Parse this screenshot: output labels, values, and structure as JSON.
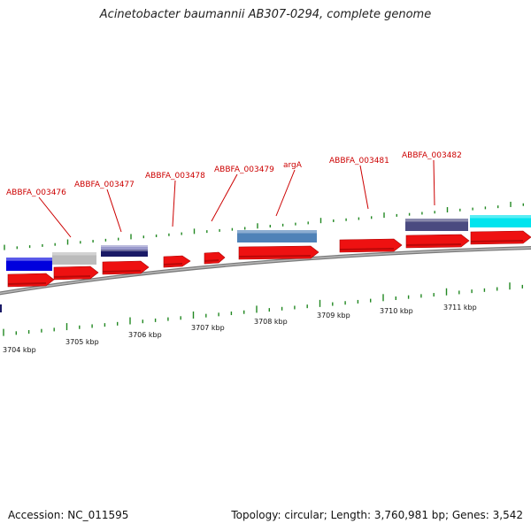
{
  "header": {
    "title": "Acinetobacter baumannii AB307-0294, complete genome"
  },
  "footer": {
    "accession": "Accession: NC_011595",
    "stats": "Topology: circular; Length: 3,760,981 bp; Genes: 3,542"
  },
  "colors": {
    "cds_red": "#ee1111",
    "backbone": "#8c8c8c",
    "tick_green": "#228822",
    "label_red": "#cc0000",
    "blue": "#0000dd",
    "grey": "#bbbbbb",
    "navy": "#1a1a66",
    "lavender": "#9a9acc",
    "steelblue": "#4f82b8",
    "slate": "#4a4a80",
    "cyan": "#00e4ee"
  },
  "gene_labels": [
    {
      "name": "ABBFA_003476"
    },
    {
      "name": "ABBFA_003477"
    },
    {
      "name": "ABBFA_003478"
    },
    {
      "name": "ABBFA_003479"
    },
    {
      "name": "argA"
    },
    {
      "name": "ABBFA_003481"
    },
    {
      "name": "ABBFA_003482"
    }
  ],
  "kbp_ticks": [
    {
      "label": "3704 kbp"
    },
    {
      "label": "3705 kbp"
    },
    {
      "label": "3706 kbp"
    },
    {
      "label": "3707 kbp"
    },
    {
      "label": "3708 kbp"
    },
    {
      "label": "3709 kbp"
    },
    {
      "label": "3710 kbp"
    },
    {
      "label": "3711 kbp"
    }
  ]
}
